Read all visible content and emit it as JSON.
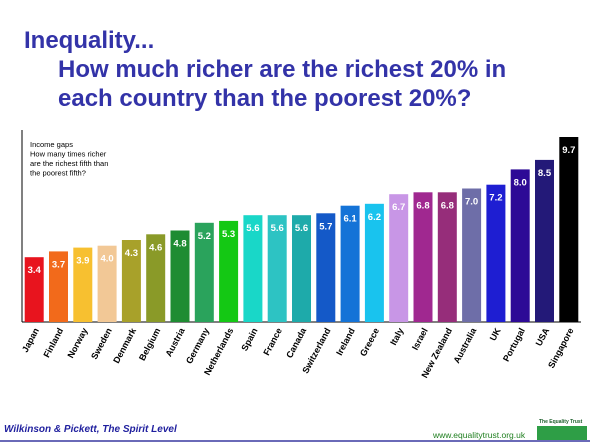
{
  "title": {
    "line1": "Inequality...",
    "line2": "How much richer are the richest 20% in",
    "line3": "each country than the poorest 20%?"
  },
  "footer": {
    "credit": "Wilkinson & Pickett, The Spirit Level",
    "url": "www.equalitytrust.org.uk",
    "logo_text": "The Equality Trust"
  },
  "colors": {
    "title": "#3333a8",
    "footer_credit": "#1f1f9e",
    "url": "#1f7f1f",
    "logo": "#2e9e46"
  },
  "chart_data": {
    "type": "bar",
    "annotation": [
      "Income gaps",
      "How many times richer",
      "are the richest fifth than",
      "the poorest fifth?"
    ],
    "categories": [
      "Japan",
      "Finland",
      "Norway",
      "Sweden",
      "Denmark",
      "Belgium",
      "Austria",
      "Germany",
      "Netherlands",
      "Spain",
      "France",
      "Canada",
      "Switzerland",
      "Ireland",
      "Greece",
      "Italy",
      "Israel",
      "New Zealand",
      "Australia",
      "UK",
      "Portugal",
      "USA",
      "Singapore"
    ],
    "values": [
      3.4,
      3.7,
      3.9,
      4.0,
      4.3,
      4.6,
      4.8,
      5.2,
      5.3,
      5.6,
      5.6,
      5.6,
      5.7,
      6.1,
      6.2,
      6.7,
      6.8,
      6.8,
      7.0,
      7.2,
      8.0,
      8.5,
      9.7
    ],
    "value_labels": [
      "3.4",
      "3.7",
      "3.9",
      "4.0",
      "4.3",
      "4.6",
      "4.8",
      "5.2",
      "5.3",
      "5.6",
      "5.6",
      "5.6",
      "5.7",
      "6.1",
      "6.2",
      "6.7",
      "6.8",
      "6.8",
      "7.0",
      "7.2",
      "8.0",
      "8.5",
      "9.7"
    ],
    "bar_colors": [
      "#e8141e",
      "#f26a1b",
      "#f7c030",
      "#f2c896",
      "#a8a12a",
      "#8a9a28",
      "#1e8c32",
      "#2aa35c",
      "#14c814",
      "#19d7c8",
      "#2dc3c3",
      "#1eaaaa",
      "#1459c8",
      "#1473d7",
      "#19c3ee",
      "#c896e6",
      "#a02890",
      "#962d7a",
      "#6e6ea8",
      "#1e1ed2",
      "#2d0a96",
      "#231978",
      "#000000"
    ],
    "ylim": [
      0,
      10
    ],
    "grid": false,
    "legend": false
  }
}
